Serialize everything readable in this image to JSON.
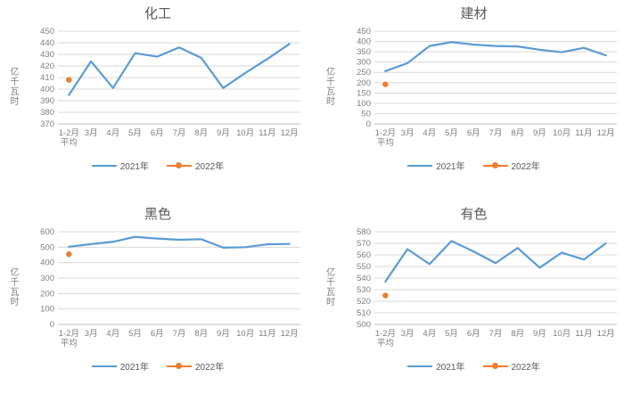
{
  "page": {
    "background": "#ffffff"
  },
  "colors": {
    "series_2021": "#5B9BD5",
    "series_2022": "#ED7D31",
    "gridline": "#D9D9D9",
    "axis_line": "#BFBFBF",
    "tick_text": "#7F7F7F",
    "title_text": "#595959"
  },
  "x_labels": [
    "1-2月|平均",
    "3月",
    "4月",
    "5月",
    "6月",
    "7月",
    "8月",
    "9月",
    "10月",
    "11月",
    "12月"
  ],
  "chart_data": [
    {
      "type": "line",
      "title": "化工",
      "ylabel": "亿千瓦时",
      "categories": [
        "1-2月平均",
        "3月",
        "4月",
        "5月",
        "6月",
        "7月",
        "8月",
        "9月",
        "10月",
        "11月",
        "12月"
      ],
      "series": [
        {
          "name": "2021年",
          "values": [
            395,
            424,
            401,
            431,
            428,
            436,
            427,
            401,
            414,
            426,
            439
          ]
        },
        {
          "name": "2022年",
          "values": [
            408,
            null,
            null,
            null,
            null,
            null,
            null,
            null,
            null,
            null,
            null
          ]
        }
      ],
      "ylim": [
        370,
        450
      ],
      "y_step": 10,
      "grid": true,
      "legend_position": "bottom"
    },
    {
      "type": "line",
      "title": "建材",
      "ylabel": "亿千瓦时",
      "categories": [
        "1-2月平均",
        "3月",
        "4月",
        "5月",
        "6月",
        "7月",
        "8月",
        "9月",
        "10月",
        "11月",
        "12月"
      ],
      "series": [
        {
          "name": "2021年",
          "values": [
            256,
            295,
            378,
            397,
            385,
            378,
            376,
            360,
            348,
            369,
            333
          ]
        },
        {
          "name": "2022年",
          "values": [
            192,
            null,
            null,
            null,
            null,
            null,
            null,
            null,
            null,
            null,
            null
          ]
        }
      ],
      "ylim": [
        0,
        450
      ],
      "y_step": 50,
      "grid": true,
      "legend_position": "bottom"
    },
    {
      "type": "line",
      "title": "黑色",
      "ylabel": "亿千瓦时",
      "categories": [
        "1-2月平均",
        "3月",
        "4月",
        "5月",
        "6月",
        "7月",
        "8月",
        "9月",
        "10月",
        "11月",
        "12月"
      ],
      "series": [
        {
          "name": "2021年",
          "values": [
            503,
            520,
            535,
            567,
            556,
            548,
            552,
            497,
            500,
            519,
            521
          ]
        },
        {
          "name": "2022年",
          "values": [
            455,
            null,
            null,
            null,
            null,
            null,
            null,
            null,
            null,
            null,
            null
          ]
        }
      ],
      "ylim": [
        0,
        600
      ],
      "y_step": 100,
      "grid": true,
      "legend_position": "bottom"
    },
    {
      "type": "line",
      "title": "有色",
      "ylabel": "亿千瓦时",
      "categories": [
        "1-2月平均",
        "3月",
        "4月",
        "5月",
        "6月",
        "7月",
        "8月",
        "9月",
        "10月",
        "11月",
        "12月"
      ],
      "series": [
        {
          "name": "2021年",
          "values": [
            537,
            565,
            552,
            572,
            563,
            553,
            566,
            549,
            562,
            556,
            570
          ]
        },
        {
          "name": "2022年",
          "values": [
            525,
            null,
            null,
            null,
            null,
            null,
            null,
            null,
            null,
            null,
            null
          ]
        }
      ],
      "ylim": [
        500,
        580
      ],
      "y_step": 10,
      "grid": true,
      "legend_position": "bottom"
    }
  ]
}
